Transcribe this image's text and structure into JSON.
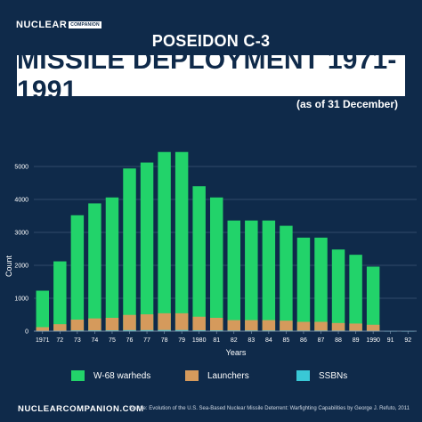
{
  "header": {
    "brand_main": "NUCLEAR",
    "brand_tag": "COMPANION",
    "subtitle": "POSEIDON C-3",
    "title": "MISSILE DEPLOYMENT 1971-1991",
    "note": "(as of 31 December)"
  },
  "footer": {
    "brand": "NUCLEARCOMPANION.COM",
    "source": "Source: Evolution of the U.S. Sea-Based Nuclear Missile Deterrent: Warfighting Capabilities by George J. Refuto, 2011"
  },
  "colors": {
    "background": "#0f2a4a",
    "warheads": "#22d36a",
    "launchers": "#d59a5c",
    "ssbns": "#39c8d6"
  },
  "chart_data": {
    "type": "bar",
    "xlabel": "Years",
    "ylabel": "Count",
    "ylim": [
      0,
      6000
    ],
    "yticks": [
      0,
      1000,
      2000,
      3000,
      4000,
      5000
    ],
    "grid": true,
    "legend_position": "bottom",
    "categories": [
      "1971",
      "72",
      "73",
      "74",
      "75",
      "76",
      "77",
      "78",
      "79",
      "1980",
      "81",
      "82",
      "83",
      "84",
      "85",
      "86",
      "87",
      "88",
      "89",
      "1990",
      "91",
      "92"
    ],
    "series": [
      {
        "name": "W-68 warheds",
        "values": [
          1230,
          2120,
          3520,
          3880,
          4060,
          4940,
          5120,
          5440,
          5440,
          4400,
          4060,
          3360,
          3360,
          3360,
          3200,
          2840,
          2840,
          2480,
          2320,
          1960,
          0,
          0
        ]
      },
      {
        "name": "Launchers",
        "values": [
          123,
          212,
          352,
          388,
          406,
          494,
          512,
          544,
          544,
          440,
          406,
          336,
          336,
          336,
          320,
          284,
          284,
          248,
          232,
          196,
          0,
          0
        ]
      },
      {
        "name": "SSBNs",
        "values": [
          8,
          13,
          22,
          24,
          25,
          31,
          32,
          34,
          34,
          28,
          25,
          21,
          21,
          21,
          20,
          18,
          18,
          16,
          14,
          12,
          4,
          2
        ]
      }
    ]
  }
}
